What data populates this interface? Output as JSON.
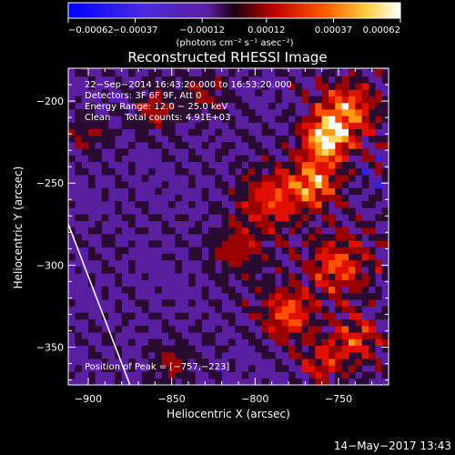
{
  "chart_data": {
    "type": "heatmap",
    "title": "Reconstructed RHESSI Image",
    "xlabel": "Heliocentric X (arcsec)",
    "ylabel": "Heliocentric Y (arcsec)",
    "xlim": [
      -912,
      -720
    ],
    "ylim": [
      -373,
      -180
    ],
    "x_ticks": [
      -900,
      -850,
      -800,
      -750
    ],
    "x_tick_labels": [
      "−900",
      "−850",
      "−800",
      "−750"
    ],
    "y_ticks": [
      -200,
      -250,
      -300,
      -350
    ],
    "y_tick_labels": [
      "−200",
      "−250",
      "−300",
      "−350"
    ],
    "colorbar": {
      "range": [
        -0.00062,
        0.00062
      ],
      "tick_values": [
        -0.00062,
        -0.00037,
        -0.00012,
        0.00012,
        0.00037,
        0.00062
      ],
      "tick_labels": [
        "−0.00062",
        "−0.00037",
        "−0.00012",
        "0.00012",
        "0.00037",
        "0.00062"
      ],
      "unit_label": "(photons cm⁻² s⁻¹ asec⁻²)",
      "colormap": [
        "#0000ff",
        "#6a1fc7",
        "#2a0a2a",
        "#ff1a00",
        "#ff9000",
        "#ffffff"
      ]
    },
    "annotations": {
      "time_range": "22−Sep−2014 16:43:20.000 to 16:53:20.000",
      "detectors": "Detectors: 3F 6F 9F, Att 0",
      "energy_range": "Energy Range: 12.0 − 25.0 keV",
      "clean_counts": "Clean     Total counts: 4.91E+03",
      "peak_position": "Position of Peak = [−757,−223]"
    },
    "peak": {
      "x": -757,
      "y": -223
    },
    "limb_line": [
      [
        -912,
        -275
      ],
      [
        -875,
        -373
      ]
    ],
    "background_color": "#5a1fa0"
  },
  "footer": {
    "date": "14−May−2017 13:43"
  }
}
